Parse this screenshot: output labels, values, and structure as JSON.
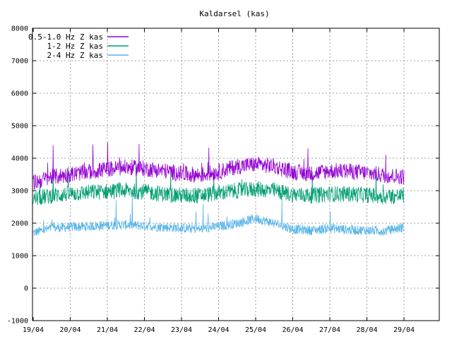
{
  "chart_data": {
    "type": "line",
    "title": "Kaldarsel (kas)",
    "xlabel": "",
    "ylabel": "",
    "ylim": [
      -1000,
      8000
    ],
    "yticks": [
      -1000,
      0,
      1000,
      2000,
      3000,
      4000,
      5000,
      6000,
      7000,
      8000
    ],
    "xlim": [
      "19/04",
      "30/04"
    ],
    "xticks": [
      "19/04",
      "20/04",
      "21/04",
      "22/04",
      "23/04",
      "24/04",
      "25/04",
      "26/04",
      "27/04",
      "28/04",
      "29/04"
    ],
    "grid": true,
    "legend_position": "top-left",
    "x": [
      "19/04",
      "19/12",
      "20/04",
      "20/12",
      "21/04",
      "21/12",
      "22/04",
      "22/12",
      "23/04",
      "23/12",
      "24/04",
      "24/12",
      "25/04",
      "25/12",
      "26/04",
      "26/12",
      "27/04",
      "27/12",
      "28/04",
      "28/12",
      "29/04"
    ],
    "series": [
      {
        "name": "0.5-1.0 Hz Z kas",
        "color": "#9400d3",
        "noise_band": 250,
        "values": [
          3250,
          3420,
          3500,
          3580,
          3660,
          3720,
          3680,
          3620,
          3520,
          3480,
          3580,
          3750,
          3810,
          3750,
          3580,
          3520,
          3610,
          3600,
          3550,
          3470,
          3430
        ]
      },
      {
        "name": "1-2 Hz Z kas",
        "color": "#009e73",
        "noise_band": 250,
        "values": [
          2750,
          2850,
          2900,
          2950,
          2980,
          3000,
          2970,
          2900,
          2850,
          2850,
          2930,
          3000,
          3050,
          3000,
          2880,
          2850,
          2900,
          2900,
          2870,
          2820,
          2850
        ]
      },
      {
        "name": "2-4 Hz Z kas",
        "color": "#56b4e9",
        "noise_band": 150,
        "values": [
          1700,
          1850,
          1880,
          1900,
          1940,
          1950,
          1920,
          1880,
          1850,
          1820,
          1900,
          2000,
          2150,
          2000,
          1820,
          1780,
          1850,
          1800,
          1780,
          1760,
          1880
        ]
      }
    ]
  }
}
